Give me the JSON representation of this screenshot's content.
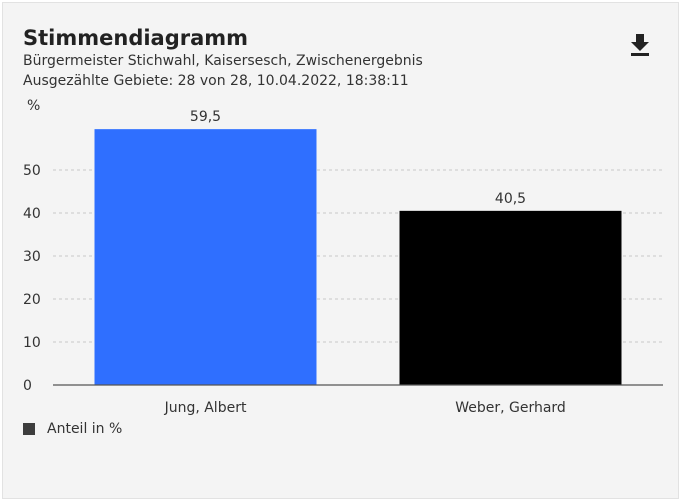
{
  "header": {
    "title": "Stimmendiagramm",
    "subtitle": "Bürgermeister Stichwahl, Kaisersesch, Zwischenergebnis",
    "meta": "Ausgezählte Gebiete: 28 von 28, 10.04.2022, 18:38:11",
    "download_icon": "download-icon"
  },
  "legend": {
    "label": "Anteil in %",
    "color": "#3d3d3d"
  },
  "chart_data": {
    "type": "bar",
    "title": "Stimmendiagramm",
    "ylabel": "%",
    "xlabel": "",
    "categories": [
      "Jung, Albert",
      "Weber, Gerhard"
    ],
    "values": [
      59.5,
      40.5
    ],
    "value_labels": [
      "59,5",
      "40,5"
    ],
    "colors": [
      "#2f6fff",
      "#000000"
    ],
    "yticks": [
      0,
      10,
      20,
      30,
      40,
      50
    ],
    "ylim": [
      0,
      60
    ],
    "grid": true,
    "legend_position": "bottom-left"
  }
}
